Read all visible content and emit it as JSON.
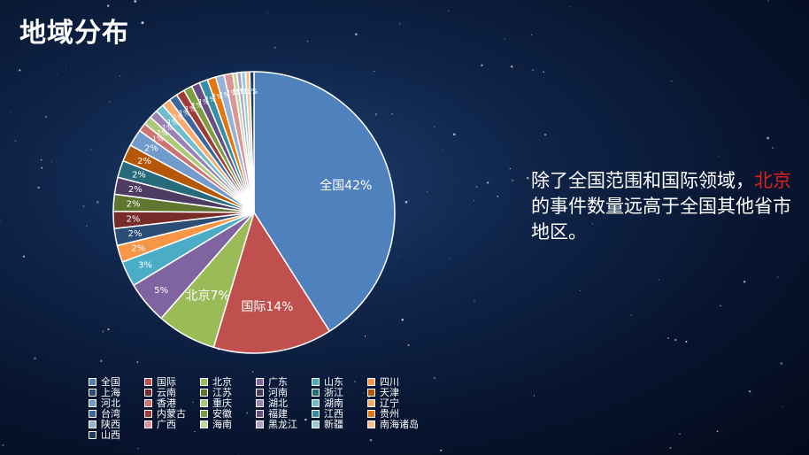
{
  "page": {
    "title": "地域分布"
  },
  "caption": {
    "line_prefix": "除了全国范围和国际领域，",
    "highlight": "北京",
    "line_suffix": "的事件数量远高于全国其他省市地区。"
  },
  "colors": {
    "highlight": "#e02020"
  },
  "chart_data": {
    "type": "pie",
    "title": "",
    "categories": [
      "全国",
      "国际",
      "北京",
      "广东",
      "山东",
      "四川",
      "上海",
      "云南",
      "江苏",
      "河南",
      "浙江",
      "天津",
      "河北",
      "香港",
      "重庆",
      "湖北",
      "湖南",
      "辽宁",
      "台湾",
      "内蒙古",
      "安徽",
      "福建",
      "江西",
      "贵州",
      "陕西",
      "广西",
      "海南",
      "黑龙江",
      "新疆",
      "南海诸岛",
      "山西"
    ],
    "values": [
      42,
      14,
      7,
      5,
      3,
      2,
      2,
      2,
      2,
      2,
      2,
      2,
      2,
      1,
      1,
      1,
      1,
      1,
      1,
      1,
      1,
      1,
      1,
      1,
      1,
      1,
      0.5,
      0.5,
      0.5,
      0.5,
      0.5
    ],
    "labels": [
      "全国42%",
      "国际14%",
      "北京7%",
      "5%",
      "3%",
      "2%",
      "2%",
      "2%",
      "2%",
      "2%",
      "2%",
      "2%",
      "2%",
      "1%",
      "1%",
      "1%",
      "1%",
      "1%",
      "1%",
      "1%",
      "1%",
      "1%",
      "1%",
      "1%",
      "1%",
      "1%",
      "1%",
      "1%",
      "1%",
      "1%",
      "1%"
    ],
    "colors": [
      "#4f81bd",
      "#c0504d",
      "#9bbb59",
      "#8064a2",
      "#4bacc6",
      "#f79646",
      "#2c4d75",
      "#772c2a",
      "#5f7530",
      "#4d3b62",
      "#276a7c",
      "#b65708",
      "#729aca",
      "#cd7371",
      "#afc97a",
      "#9983b5",
      "#6fbdd1",
      "#f9ab6b",
      "#3a679c",
      "#9f3b38",
      "#7e9c40",
      "#674e83",
      "#358ea6",
      "#e47612",
      "#95b3d7",
      "#d99694",
      "#c3d69b",
      "#b2a1c7",
      "#93cddd",
      "#fac090",
      "#1f3a5c"
    ],
    "legend_position": "bottom"
  }
}
